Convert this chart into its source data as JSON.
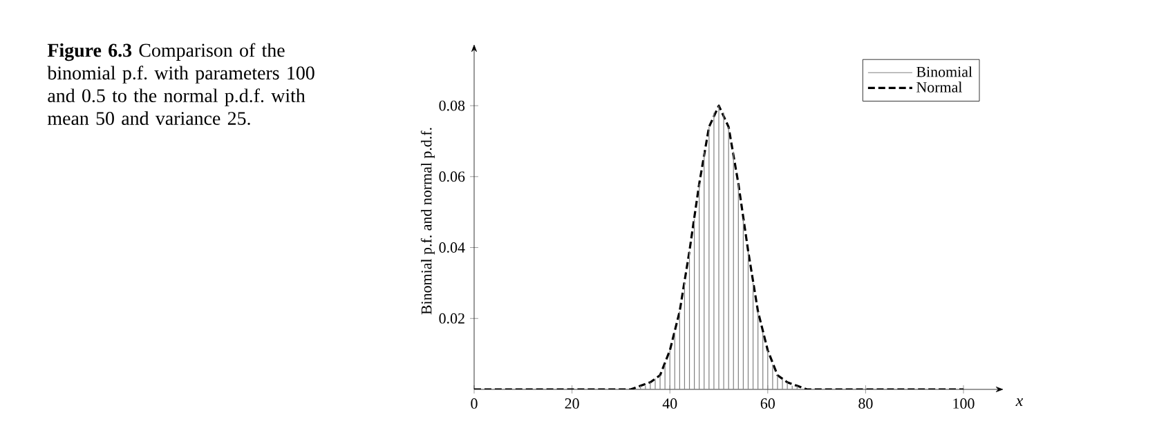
{
  "chart_data": {
    "type": "bar",
    "title": "**Figure 6.3** Comparison of the binomial p.f. with parameters 100 and 0.5 to the normal p.d.f. with mean 50 and variance 25.",
    "xlabel": "x",
    "ylabel": "Binomial p.f. and normal p.d.f.",
    "xlim": [
      0,
      106.5
    ],
    "ylim": [
      0,
      0.095
    ],
    "xticks": [
      0,
      20,
      40,
      60,
      80,
      100
    ],
    "yticks": [
      0.02,
      0.04,
      0.06,
      0.08
    ],
    "legend": "top right",
    "series": [
      {
        "name": "Binomial",
        "color": "#808080",
        "x": [
          33,
          34,
          35,
          36,
          37,
          38,
          39,
          40,
          41,
          42,
          43,
          44,
          45,
          46,
          47,
          48,
          49,
          50,
          51,
          52,
          53,
          54,
          55,
          56,
          57,
          58,
          59,
          60,
          61,
          62,
          63,
          64,
          65,
          66,
          67
        ],
        "values": [
          0.0,
          0.001,
          0.001,
          0.002,
          0.003,
          0.004,
          0.007,
          0.011,
          0.016,
          0.022,
          0.03,
          0.039,
          0.048,
          0.058,
          0.067,
          0.074,
          0.078,
          0.08,
          0.078,
          0.074,
          0.067,
          0.058,
          0.048,
          0.039,
          0.03,
          0.022,
          0.016,
          0.011,
          0.007,
          0.004,
          0.003,
          0.002,
          0.001,
          0.001,
          0.0
        ]
      },
      {
        "name": "Normal",
        "type": "line",
        "line_style": "dashed",
        "color": "#000000",
        "x": [
          0,
          10,
          20,
          30,
          32,
          34,
          36,
          38,
          40,
          42,
          44,
          46,
          48,
          50,
          52,
          54,
          56,
          58,
          60,
          62,
          64,
          66,
          68,
          70,
          80,
          90,
          100
        ],
        "values": [
          0,
          0,
          0,
          0,
          0.0,
          0.001,
          0.002,
          0.004,
          0.011,
          0.022,
          0.039,
          0.058,
          0.074,
          0.08,
          0.074,
          0.058,
          0.039,
          0.022,
          0.011,
          0.004,
          0.002,
          0.001,
          0.0,
          0,
          0,
          0,
          0
        ]
      }
    ]
  }
}
